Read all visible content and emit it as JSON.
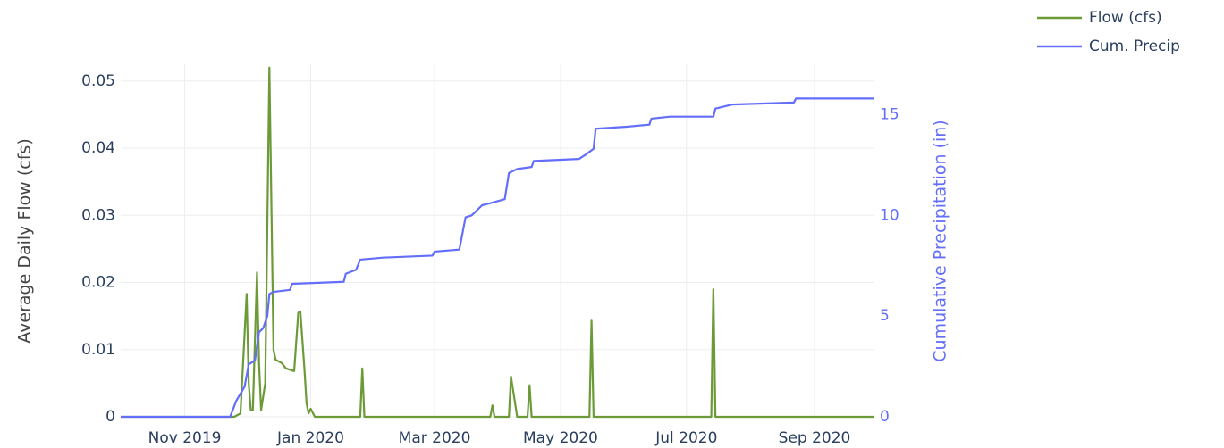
{
  "chart_data": {
    "type": "line",
    "y_axis_title": "Average Daily Flow (cfs)",
    "y2_axis_title": "Cumulative Precipitation (in)",
    "xlim": [
      "2019-10-01",
      "2020-09-30"
    ],
    "xticks": [
      {
        "value": "2019-11-01",
        "label": "Nov 2019"
      },
      {
        "value": "2020-01-01",
        "label": "Jan 2020"
      },
      {
        "value": "2020-03-01",
        "label": "Mar 2020"
      },
      {
        "value": "2020-05-01",
        "label": "May 2020"
      },
      {
        "value": "2020-07-01",
        "label": "Jul 2020"
      },
      {
        "value": "2020-09-01",
        "label": "Sep 2020"
      }
    ],
    "ylim": [
      0,
      0.0525
    ],
    "yticks": [
      0,
      0.01,
      0.02,
      0.03,
      0.04,
      0.05
    ],
    "y2lim": [
      0,
      17.5
    ],
    "y2ticks": [
      0,
      5,
      10,
      15
    ],
    "grid": true,
    "legend": "top-right",
    "series": [
      {
        "name": "Flow (cfs)",
        "color": "#6b9a37",
        "axis": "y",
        "x": [
          "2019-10-01",
          "2019-11-25",
          "2019-11-28",
          "2019-12-01",
          "2019-12-02",
          "2019-12-03",
          "2019-12-04",
          "2019-12-06",
          "2019-12-07",
          "2019-12-08",
          "2019-12-10",
          "2019-12-12",
          "2019-12-14",
          "2019-12-15",
          "2019-12-18",
          "2019-12-20",
          "2019-12-24",
          "2019-12-26",
          "2019-12-27",
          "2019-12-29",
          "2019-12-30",
          "2019-12-31",
          "2020-01-01",
          "2020-01-03",
          "2020-01-25",
          "2020-01-26",
          "2020-01-27",
          "2020-03-28",
          "2020-03-29",
          "2020-03-30",
          "2020-04-06",
          "2020-04-07",
          "2020-04-09",
          "2020-04-10",
          "2020-04-15",
          "2020-04-16",
          "2020-04-17",
          "2020-05-15",
          "2020-05-16",
          "2020-05-17",
          "2020-07-13",
          "2020-07-14",
          "2020-07-15",
          "2020-09-30"
        ],
        "values": [
          0,
          0,
          0.0005,
          0.0183,
          0.005,
          0.001,
          0.001,
          0.0215,
          0.008,
          0.001,
          0.005,
          0.052,
          0.01,
          0.0085,
          0.008,
          0.0072,
          0.0068,
          0.0155,
          0.0157,
          0.007,
          0.002,
          0.0005,
          0.0012,
          0,
          0,
          0.0072,
          0,
          0,
          0.0017,
          0,
          0,
          0.006,
          0.002,
          0,
          0,
          0.0047,
          0,
          0,
          0.0143,
          0,
          0,
          0.019,
          0,
          0
        ]
      },
      {
        "name": "Cum. Precip",
        "color": "#636efa",
        "axis": "y2",
        "x": [
          "2019-10-01",
          "2019-11-23",
          "2019-11-26",
          "2019-11-30",
          "2019-12-02",
          "2019-12-05",
          "2019-12-07",
          "2019-12-09",
          "2019-12-11",
          "2019-12-12",
          "2019-12-14",
          "2019-12-22",
          "2019-12-23",
          "2020-01-17",
          "2020-01-18",
          "2020-01-23",
          "2020-01-25",
          "2020-02-05",
          "2020-02-29",
          "2020-03-01",
          "2020-03-13",
          "2020-03-16",
          "2020-03-19",
          "2020-03-24",
          "2020-03-28",
          "2020-04-04",
          "2020-04-06",
          "2020-04-10",
          "2020-04-17",
          "2020-04-18",
          "2020-05-10",
          "2020-05-13",
          "2020-05-17",
          "2020-05-18",
          "2020-06-02",
          "2020-06-13",
          "2020-06-14",
          "2020-06-23",
          "2020-07-14",
          "2020-07-15",
          "2020-07-23",
          "2020-08-22",
          "2020-08-23",
          "2020-09-30"
        ],
        "values": [
          0,
          0,
          0.8,
          1.5,
          2.6,
          2.8,
          4.2,
          4.4,
          5.0,
          6.1,
          6.2,
          6.3,
          6.6,
          6.7,
          7.1,
          7.3,
          7.8,
          7.9,
          8.0,
          8.2,
          8.3,
          9.9,
          10.0,
          10.5,
          10.6,
          10.8,
          12.1,
          12.3,
          12.4,
          12.7,
          12.8,
          13.0,
          13.3,
          14.3,
          14.4,
          14.5,
          14.8,
          14.9,
          14.9,
          15.3,
          15.5,
          15.6,
          15.8,
          15.8
        ]
      }
    ]
  }
}
